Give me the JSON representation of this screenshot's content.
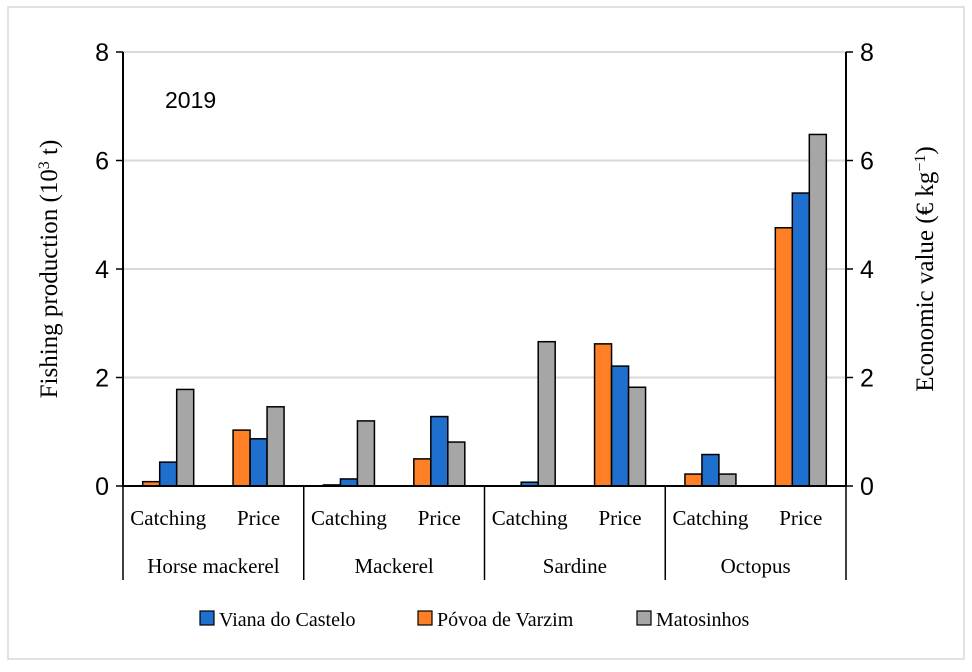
{
  "chart_data": {
    "type": "bar",
    "annotation": "2019",
    "ylabel_left": {
      "pre": "Fishing production (10",
      "sup": "3",
      "post": " t)"
    },
    "ylabel_right": {
      "pre": "Economic value (€ kg",
      "sup": "−1",
      "post": ")"
    },
    "ylim": [
      0,
      8
    ],
    "y_ticks": [
      "0",
      "2",
      "4",
      "6",
      "8"
    ],
    "grid": true,
    "groups": [
      "Horse mackerel",
      "Mackerel",
      "Sardine",
      "Octopus"
    ],
    "subcategories": [
      "Catching",
      "Price",
      "Catching",
      "Price",
      "Catching",
      "Price",
      "Catching",
      "Price"
    ],
    "series": [
      {
        "name": "Póvoa de Varzim",
        "color": "#ff7f27",
        "values": [
          0.08,
          1.03,
          0.02,
          0.5,
          0.0,
          2.62,
          0.22,
          4.76
        ]
      },
      {
        "name": "Viana do Castelo",
        "color": "#1f6fcf",
        "values": [
          0.44,
          0.87,
          0.13,
          1.28,
          0.07,
          2.21,
          0.58,
          5.4
        ]
      },
      {
        "name": "Matosinhos",
        "color": "#a6a6a6",
        "values": [
          1.78,
          1.46,
          1.2,
          0.81,
          2.66,
          1.82,
          0.22,
          6.48
        ]
      }
    ],
    "legend": {
      "placement": "bottom",
      "entries": [
        "Viana do Castelo",
        "Póvoa de Varzim",
        "Matosinhos"
      ]
    }
  }
}
